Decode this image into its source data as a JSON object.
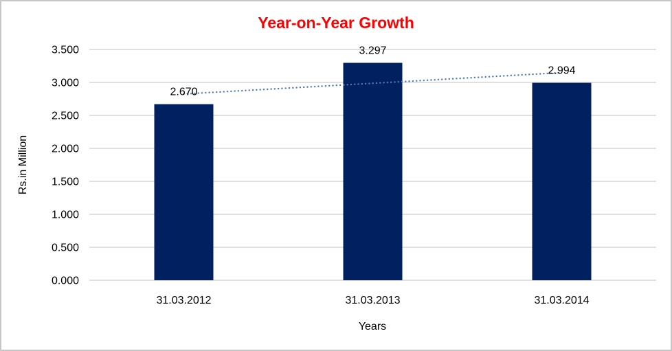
{
  "chart_data": {
    "type": "bar",
    "title": "Year-on-Year Growth",
    "categories": [
      "31.03.2012",
      "31.03.2013",
      "31.03.2014"
    ],
    "values": [
      2.67,
      3.297,
      2.994
    ],
    "data_labels": [
      "2.670",
      "3.297",
      "2.994"
    ],
    "xlabel": "Years",
    "ylabel": "Rs.in Million",
    "ylim": [
      0,
      3.5
    ],
    "ytick_step": 0.5,
    "ytick_labels": [
      "0.000",
      "0.500",
      "1.000",
      "1.500",
      "2.000",
      "2.500",
      "3.000",
      "3.500"
    ],
    "grid": true,
    "legend": "none",
    "bar_color": "#002060",
    "trendline": {
      "type": "linear",
      "style": "dotted",
      "color": "#4A7EBB",
      "fit_endpoints": [
        2.825,
        3.149
      ]
    },
    "colors": {
      "title": "#FF0000",
      "text": "#000000",
      "gridline": "#D6D6D6",
      "axis_line": "#D6D6D6",
      "border": "#C6C6C6",
      "background": "#FFFFFF"
    }
  }
}
